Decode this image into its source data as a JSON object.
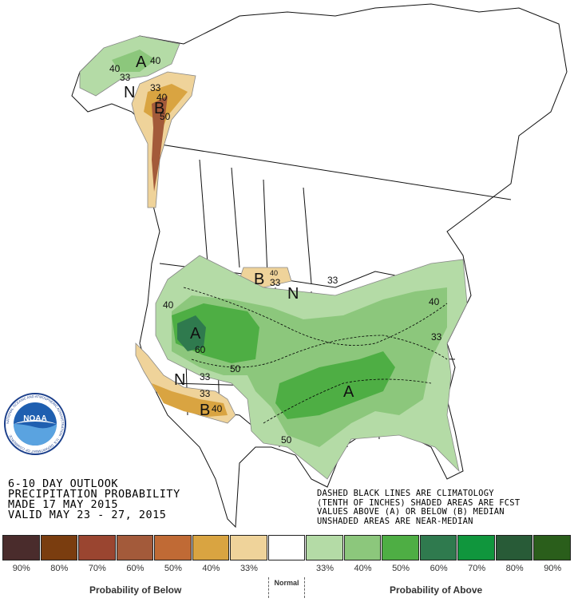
{
  "title": {
    "line1": "6-10 DAY OUTLOOK",
    "line2": "PRECIPITATION PROBABILITY",
    "line3": "MADE  17 MAY 2015",
    "line4": "VALID  MAY 23 - 27, 2015"
  },
  "notes": {
    "line1": "DASHED BLACK LINES ARE CLIMATOLOGY",
    "line2": "(TENTH OF INCHES) SHADED AREAS ARE FCST",
    "line3": "VALUES ABOVE (A) OR BELOW (B) MEDIAN",
    "line4": "UNSHADED AREAS ARE NEAR-MEDIAN"
  },
  "map_labels": {
    "alaska_A": "A",
    "alaska_40a": "40",
    "alaska_40b": "40",
    "alaska_33": "33",
    "alaska_N": "N",
    "alaska_B": "B",
    "alaska_33b": "33",
    "alaska_40c": "40",
    "alaska_50": "50",
    "canada_B": "B",
    "canada_33": "33",
    "canada_40": "40",
    "canada_N": "N",
    "west_A": "A",
    "west_40": "40",
    "west_60": "60",
    "west_50": "50",
    "sw_N": "N",
    "sw_33a": "33",
    "sw_33b": "33",
    "sw_B": "B",
    "sw_40": "40",
    "central_A": "A",
    "central_50": "50",
    "east_33": "33",
    "east_40": "40",
    "east_33b": "33"
  },
  "legend": {
    "colors": [
      "#4a2c2c",
      "#7a3d0f",
      "#9a4530",
      "#a35a3a",
      "#c06a35",
      "#d9a441",
      "#efd39a",
      "#ffffff",
      "#b4dba6",
      "#8cc77c",
      "#4eae44",
      "#2f7a4e",
      "#10963d",
      "#285b37",
      "#2a5e1b"
    ],
    "labels": [
      "90%",
      "80%",
      "70%",
      "60%",
      "50%",
      "40%",
      "33%",
      "33%",
      "40%",
      "50%",
      "60%",
      "70%",
      "80%",
      "90%"
    ],
    "below_caption": "Probability of Below",
    "normal_caption": "Normal",
    "above_caption": "Probability of Above"
  },
  "logo": {
    "text": "NOAA",
    "ring_text": "NATIONAL OCEANIC AND ATMOSPHERIC ADMINISTRATION · U.S. DEPARTMENT OF COMMERCE"
  }
}
